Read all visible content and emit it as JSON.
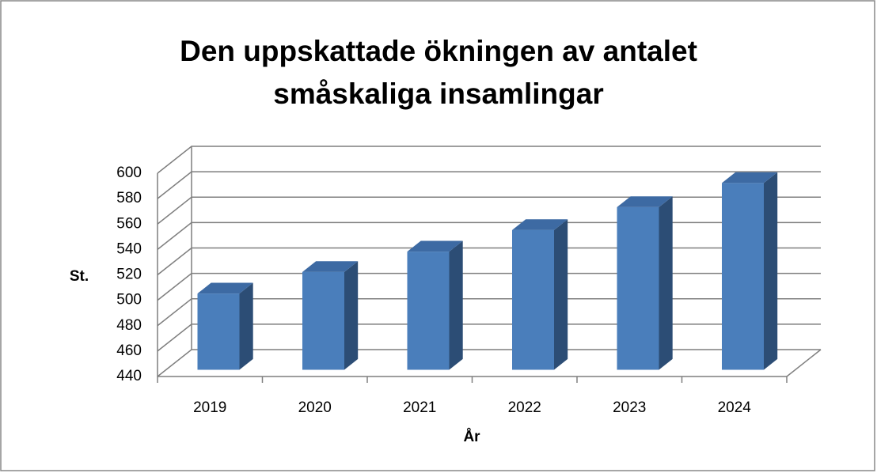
{
  "chart_data": {
    "type": "bar3d",
    "title": "Den uppskattade ökningen av antalet småskaliga insamlingar",
    "xlabel": "År",
    "ylabel": "St.",
    "categories": [
      "2019",
      "2020",
      "2021",
      "2022",
      "2023",
      "2024"
    ],
    "values": [
      500,
      517,
      533,
      550,
      568,
      587
    ],
    "color": "#4a7ebb",
    "ylim": [
      440,
      600
    ],
    "yticks": [
      440,
      460,
      480,
      500,
      520,
      540,
      560,
      580,
      600
    ],
    "grid": true
  }
}
